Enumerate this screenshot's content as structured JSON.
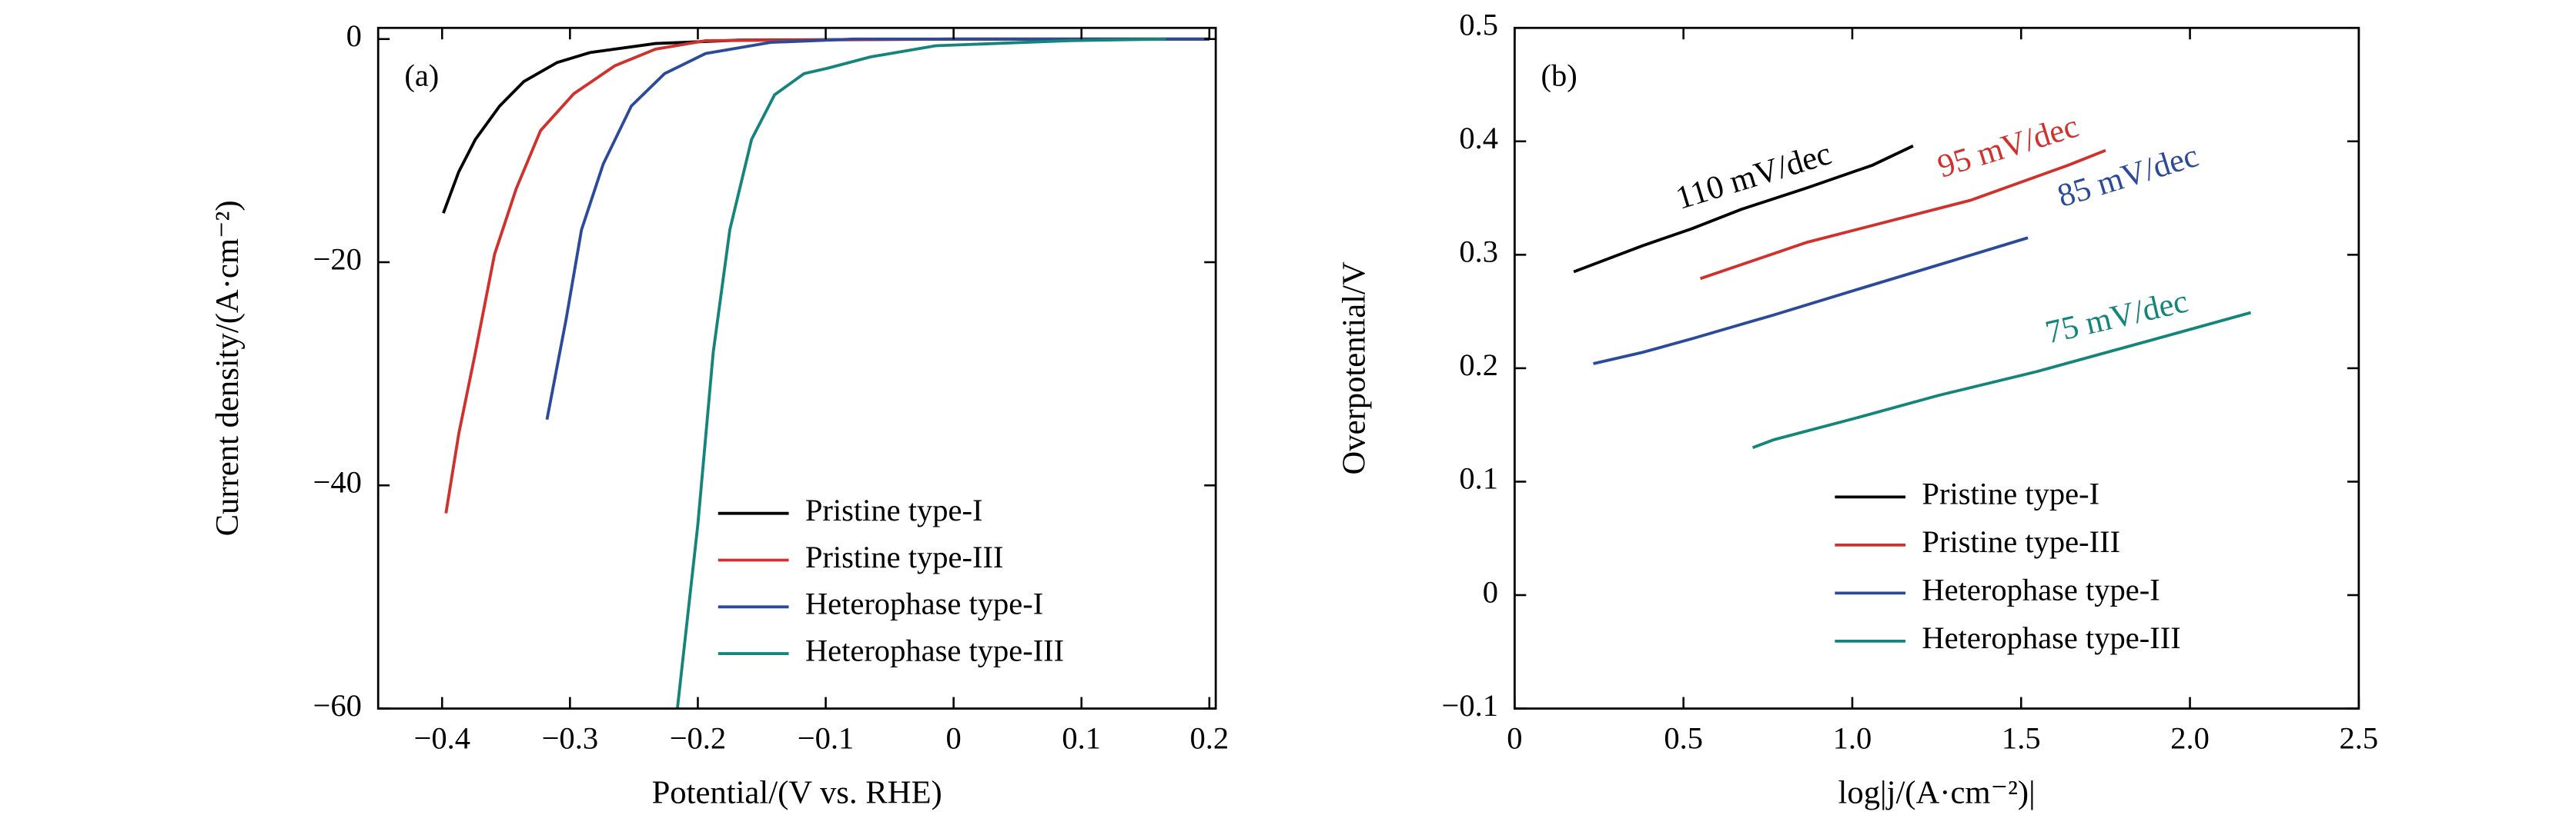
{
  "chart_data": [
    {
      "type": "line",
      "panel_label": "(a)",
      "x_label": "Potential/(V vs. RHE)",
      "y_label": "Current density/(A·cm⁻²)",
      "xlim": [
        -0.45,
        0.205
      ],
      "ylim": [
        -60,
        1
      ],
      "xticks": [
        {
          "value": -0.4,
          "label": "−0.4"
        },
        {
          "value": -0.3,
          "label": "−0.3"
        },
        {
          "value": -0.2,
          "label": "−0.2"
        },
        {
          "value": -0.1,
          "label": "−0.1"
        },
        0,
        0.1,
        0.2
      ],
      "yticks": [
        {
          "value": -60,
          "label": "−60"
        },
        {
          "value": -40,
          "label": "−40"
        },
        {
          "value": -20,
          "label": "−20"
        },
        0
      ],
      "legend": "lower right",
      "series": [
        {
          "name": "Pristine type-I",
          "color": "#000000",
          "x": [
            -0.399,
            -0.387,
            -0.374,
            -0.355,
            -0.336,
            -0.31,
            -0.284,
            -0.233,
            -0.168,
            0.0,
            0.2
          ],
          "values": [
            -15.6,
            -11.9,
            -9.0,
            -6.0,
            -3.8,
            -2.1,
            -1.2,
            -0.4,
            -0.1,
            0,
            0
          ]
        },
        {
          "name": "Pristine type-III",
          "color": "#d0312d",
          "x": [
            -0.397,
            -0.387,
            -0.374,
            -0.359,
            -0.342,
            -0.323,
            -0.297,
            -0.265,
            -0.233,
            -0.194,
            0.0,
            0.2
          ],
          "values": [
            -42.5,
            -35.4,
            -28.1,
            -19.3,
            -13.4,
            -8.2,
            -4.9,
            -2.4,
            -0.9,
            -0.15,
            0,
            0
          ]
        },
        {
          "name": "Heterophase type-I",
          "color": "#2b4a9a",
          "x": [
            -0.318,
            -0.303,
            -0.291,
            -0.274,
            -0.252,
            -0.226,
            -0.194,
            -0.143,
            -0.078,
            0.2
          ],
          "values": [
            -34.1,
            -25.1,
            -17.1,
            -11.2,
            -6.0,
            -3.1,
            -1.3,
            -0.3,
            0,
            0
          ]
        },
        {
          "name": "Heterophase type-III",
          "color": "#15847a",
          "x": [
            -0.216,
            -0.2,
            -0.188,
            -0.175,
            -0.158,
            -0.14,
            -0.117,
            -0.098,
            -0.065,
            -0.014,
            0.089,
            0.166
          ],
          "values": [
            -60,
            -43.5,
            -28.1,
            -17.1,
            -9.0,
            -5.0,
            -3.1,
            -2.6,
            -1.6,
            -0.6,
            -0.15,
            0
          ]
        }
      ]
    },
    {
      "type": "line",
      "panel_label": "(b)",
      "x_label": "log|j/(A·cm⁻²)|",
      "y_label": "Overpotential/V",
      "xlim": [
        0,
        2.5
      ],
      "ylim": [
        -0.1,
        0.5
      ],
      "xticks": [
        0,
        0.5,
        {
          "value": 1,
          "label": "1.0"
        },
        1.5,
        {
          "value": 2,
          "label": "2.0"
        },
        2.5
      ],
      "yticks": [
        {
          "value": -0.1,
          "label": "−0.1"
        },
        0,
        0.1,
        0.2,
        0.3,
        0.4,
        0.5
      ],
      "legend": "lower center",
      "series": [
        {
          "name": "Pristine type-I",
          "color": "#000000",
          "x": [
            0.175,
            0.379,
            0.525,
            0.671,
            0.866,
            1.06,
            1.18
          ],
          "values": [
            0.285,
            0.308,
            0.323,
            0.34,
            0.359,
            0.379,
            0.396
          ]
        },
        {
          "name": "Pristine type-III",
          "color": "#d0312d",
          "x": [
            0.55,
            0.866,
            1.35,
            1.64,
            1.75
          ],
          "values": [
            0.279,
            0.311,
            0.348,
            0.379,
            0.392
          ]
        },
        {
          "name": "Heterophase type-I",
          "color": "#2b4a9a",
          "x": [
            0.233,
            0.379,
            0.525,
            0.768,
            1.01,
            1.255,
            1.52
          ],
          "values": [
            0.204,
            0.214,
            0.226,
            0.247,
            0.269,
            0.291,
            0.315
          ]
        },
        {
          "name": "Heterophase type-III",
          "color": "#15847a",
          "x": [
            0.705,
            0.768,
            1.01,
            1.255,
            1.546,
            1.84,
            2.18
          ],
          "values": [
            0.13,
            0.137,
            0.156,
            0.176,
            0.197,
            0.221,
            0.249
          ]
        }
      ],
      "annotations": [
        {
          "text": "110 mV/dec",
          "color": "#000000"
        },
        {
          "text": "95 mV/dec",
          "color": "#d0312d"
        },
        {
          "text": "85 mV/dec",
          "color": "#2b4a9a"
        },
        {
          "text": "75 mV/dec",
          "color": "#15847a"
        }
      ]
    }
  ]
}
